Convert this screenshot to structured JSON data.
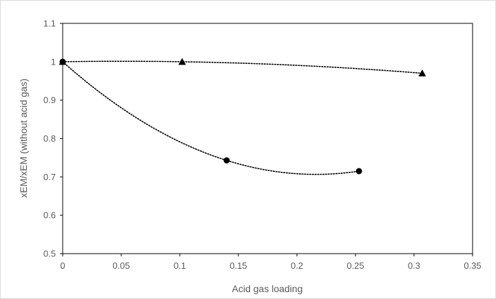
{
  "chart_data": {
    "type": "scatter",
    "title": "",
    "xlabel": "Acid gas loading",
    "ylabel": "xEM/xEM (without acid gas)",
    "xlim": [
      0,
      0.35
    ],
    "ylim": [
      0.5,
      1.1
    ],
    "x_ticks": [
      "0",
      "0.05",
      "0.1",
      "0.15",
      "0.2",
      "0.25",
      "0.3",
      "0.35"
    ],
    "y_ticks": [
      "0.5",
      "0.6",
      "0.7",
      "0.8",
      "0.9",
      "1",
      "1.1"
    ],
    "grid": false,
    "legend": "none",
    "series": [
      {
        "marker": "triangle",
        "color": "#000000",
        "trendline": "polynomial, dotted",
        "points": [
          [
            0,
            1.0
          ],
          [
            0.102,
            1.0
          ],
          [
            0.307,
            0.97
          ]
        ]
      },
      {
        "marker": "circle",
        "color": "#000000",
        "trendline": "polynomial, dotted",
        "points": [
          [
            0,
            1.0
          ],
          [
            0.14,
            0.743
          ],
          [
            0.253,
            0.715
          ]
        ]
      }
    ]
  }
}
